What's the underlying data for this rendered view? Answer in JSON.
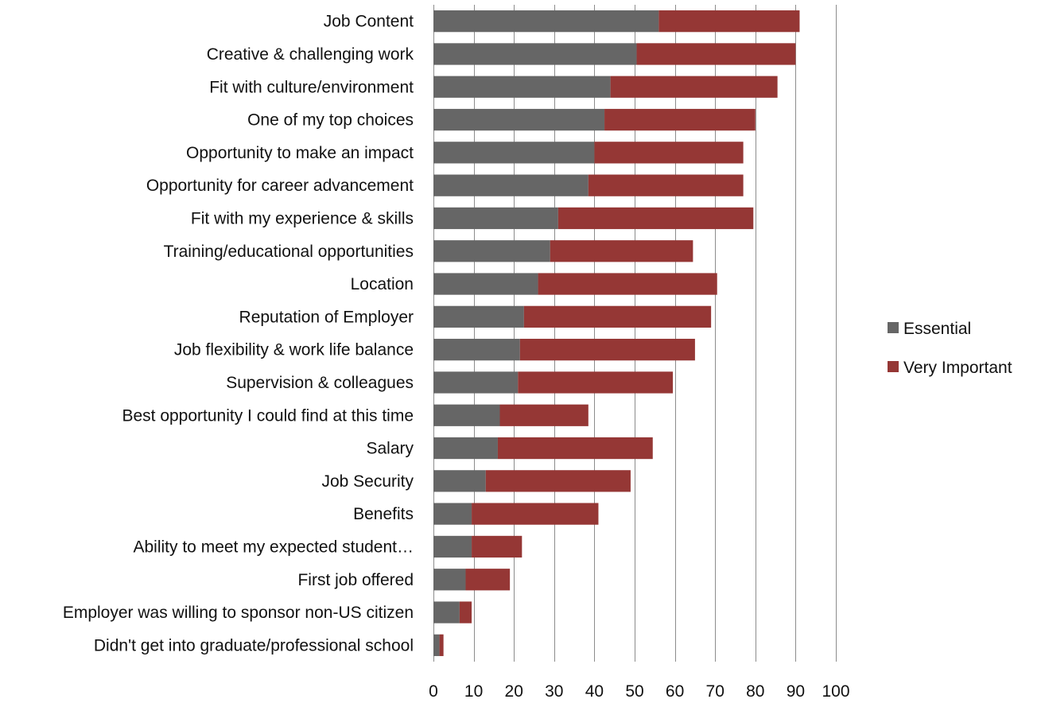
{
  "chart_data": {
    "type": "bar",
    "orientation": "horizontal",
    "stacked": true,
    "categories": [
      "Job Content",
      "Creative & challenging work",
      "Fit with culture/environment",
      "One of my top choices",
      "Opportunity to make an impact",
      "Opportunity for career advancement",
      "Fit with my experience & skills",
      "Training/educational opportunities",
      "Location",
      "Reputation of Employer",
      "Job flexibility & work life balance",
      "Supervision & colleagues",
      "Best opportunity I could find at this time",
      "Salary",
      "Job Security",
      "Benefits",
      "Ability to meet my expected student…",
      "First job offered",
      "Employer was willing to sponsor non-US citizen",
      "Didn't get into graduate/professional school"
    ],
    "series": [
      {
        "name": "Essential",
        "color": "#666666",
        "values": [
          56,
          50.5,
          44,
          42.5,
          40,
          38.5,
          31,
          29,
          26,
          22.5,
          21.5,
          21,
          16.5,
          16,
          13,
          9.5,
          9.5,
          8,
          6.5,
          1.5
        ]
      },
      {
        "name": "Very Important",
        "color": "#953735",
        "values": [
          35,
          39.5,
          41.5,
          37.5,
          37,
          38.5,
          48.5,
          35.5,
          44.5,
          46.5,
          43.5,
          38.5,
          22,
          38.5,
          36,
          31.5,
          12.5,
          11,
          3,
          1
        ]
      }
    ],
    "xaxis": {
      "ticks": [
        0,
        10,
        20,
        30,
        40,
        50,
        60,
        70,
        80,
        90,
        100
      ],
      "range": [
        0,
        100
      ]
    },
    "grid": "vertical",
    "legend": "right",
    "title": "",
    "xlabel": "",
    "ylabel": ""
  }
}
